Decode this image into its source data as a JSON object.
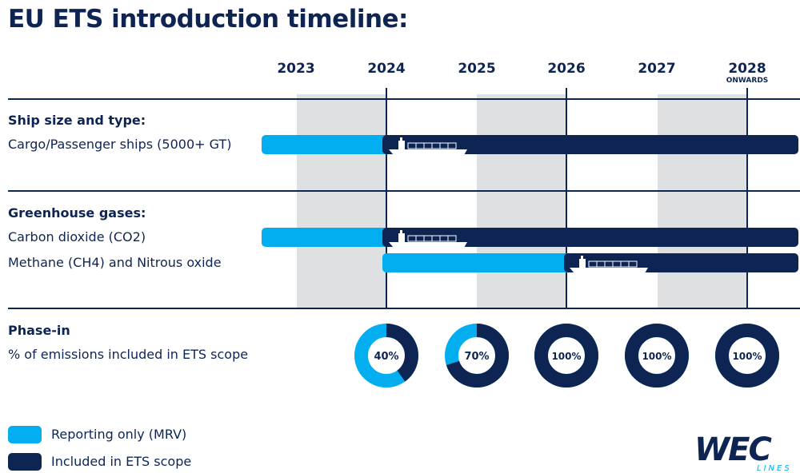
{
  "title": "EU ETS introduction timeline:",
  "years": [
    {
      "label": "2023",
      "sub": ""
    },
    {
      "label": "2024",
      "sub": ""
    },
    {
      "label": "2025",
      "sub": ""
    },
    {
      "label": "2026",
      "sub": ""
    },
    {
      "label": "2027",
      "sub": ""
    },
    {
      "label": "2028",
      "sub": "ONWARDS"
    }
  ],
  "sections": {
    "ship": {
      "heading": "Ship size and type:",
      "rows": [
        {
          "label": "Cargo/Passenger ships (5000+ GT)",
          "reporting_from": "before 2023",
          "ets_from": "2024"
        }
      ]
    },
    "gases": {
      "heading": "Greenhouse gases:",
      "rows": [
        {
          "label": "Carbon dioxide (CO2)",
          "reporting_from": "before 2023",
          "ets_from": "2024"
        },
        {
          "label": "Methane (CH4) and Nitrous oxide",
          "reporting_from": "2024",
          "ets_from": "2026"
        }
      ]
    },
    "phase": {
      "heading": "Phase-in",
      "subheading": "% of emissions included in ETS scope",
      "donuts": [
        {
          "year": "2024",
          "percent": 40,
          "label": "40%"
        },
        {
          "year": "2025",
          "percent": 70,
          "label": "70%"
        },
        {
          "year": "2026",
          "percent": 100,
          "label": "100%"
        },
        {
          "year": "2027",
          "percent": 100,
          "label": "100%"
        },
        {
          "year": "2028",
          "percent": 100,
          "label": "100%"
        }
      ]
    }
  },
  "legend": [
    {
      "label": "Reporting only (MRV)",
      "color": "#02aeef"
    },
    {
      "label": "Included in ETS scope",
      "color": "#0e2554"
    }
  ],
  "colors": {
    "navy": "#0e2554",
    "light_blue": "#02aeef",
    "band_gray": "#dfe0e1"
  },
  "logo": {
    "text": "WEC",
    "subtext": "LINES"
  }
}
